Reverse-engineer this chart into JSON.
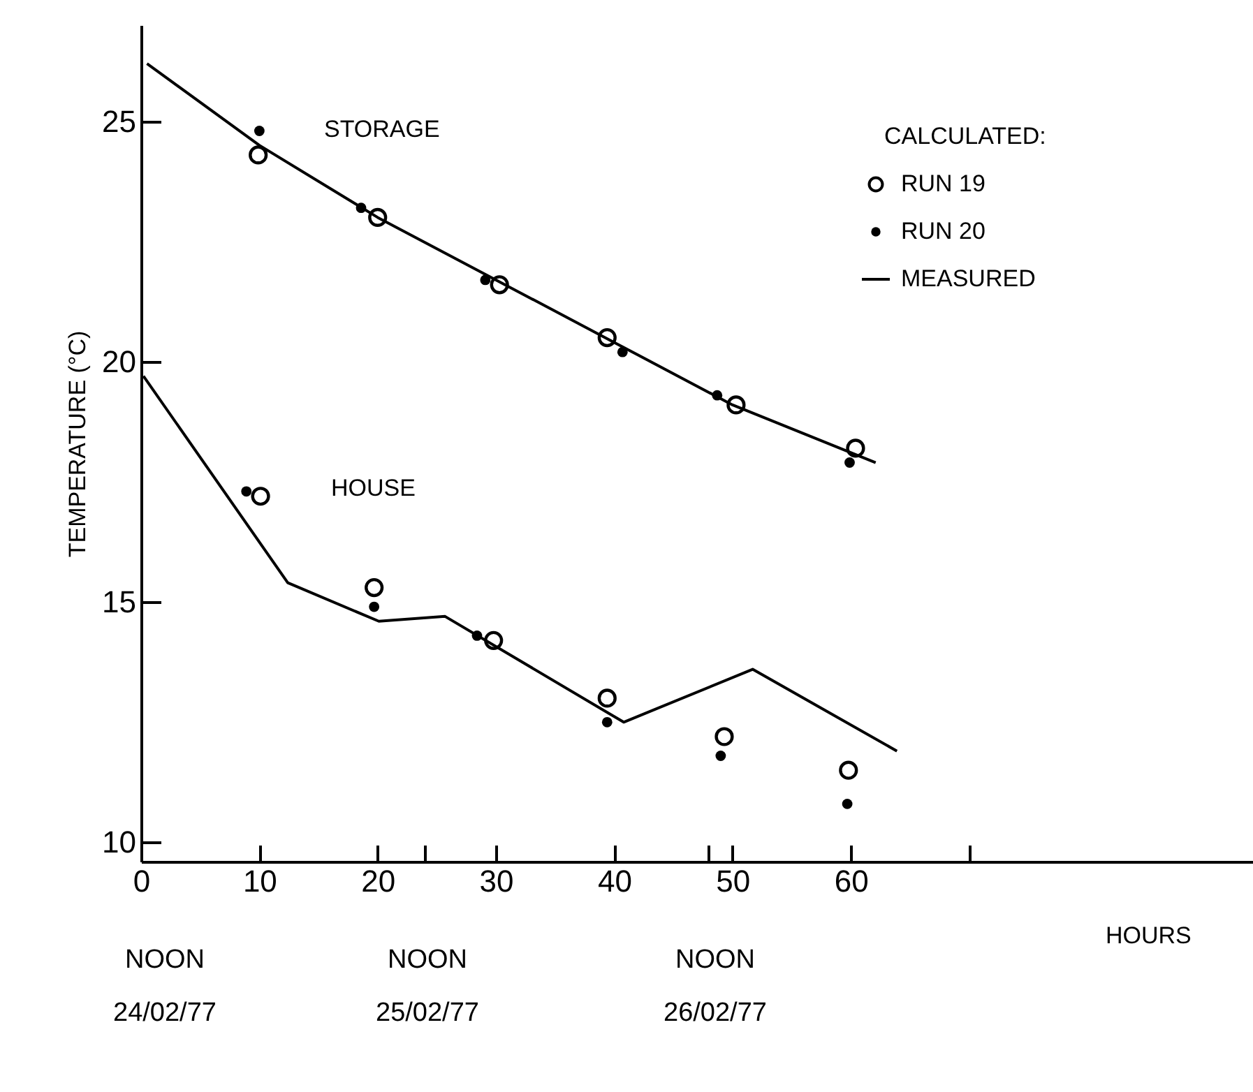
{
  "chart_data": {
    "type": "line",
    "xlabel": "HOURS",
    "ylabel": "TEMPERATURE (°C)",
    "legend_title": "CALCULATED:",
    "legend": "top right",
    "grid": false,
    "xlim": [
      0,
      94
    ],
    "ylim": [
      9.6,
      27
    ],
    "xticks": [
      0,
      10,
      20,
      {
        "value": 24,
        "label": null
      },
      30,
      40,
      {
        "value": 48,
        "label": null
      },
      50,
      60,
      {
        "value": 70,
        "label": null
      }
    ],
    "yticks": [
      10,
      15,
      20,
      25
    ],
    "series": [
      {
        "name": "RUN 19",
        "type": "scatter",
        "marker": "circle",
        "color": "#000000",
        "x": [
          9.9,
          20,
          30.3,
          39.4,
          50.3,
          60.4,
          10.1,
          19.7,
          29.8,
          39.4,
          49.3,
          59.8
        ],
        "values": [
          24.3,
          23.0,
          21.6,
          20.5,
          19.1,
          18.2,
          17.2,
          15.3,
          14.2,
          13.0,
          12.2,
          11.5
        ]
      },
      {
        "name": "RUN 20",
        "type": "scatter",
        "marker": "circle",
        "color": "#000000",
        "x": [
          10,
          18.6,
          29.1,
          40.7,
          48.7,
          59.9,
          8.9,
          19.7,
          28.4,
          39.4,
          49,
          59.7
        ],
        "values": [
          24.8,
          23.2,
          21.7,
          20.2,
          19.3,
          17.9,
          17.3,
          14.9,
          14.3,
          12.5,
          11.8,
          10.8
        ]
      },
      {
        "name": "MEASURED",
        "type": "line",
        "line_style": "solid",
        "color": "#000000",
        "x": [
          0.5,
          10,
          20,
          30,
          40,
          50,
          62.1
        ],
        "values": [
          26.2,
          24.5,
          23.0,
          21.7,
          20.4,
          19.1,
          17.9
        ]
      },
      {
        "type": "line",
        "line_style": "solid",
        "color": "#000000",
        "x": [
          0.2,
          12.4,
          20.1,
          25.7,
          40.8,
          51.7,
          63.9
        ],
        "values": [
          19.7,
          15.4,
          14.6,
          14.7,
          12.5,
          13.6,
          11.9
        ]
      }
    ],
    "annotations": [
      "STORAGE",
      "HOUSE",
      "NOON 24/02/77",
      "NOON 25/02/77",
      "NOON 26/02/77"
    ]
  }
}
